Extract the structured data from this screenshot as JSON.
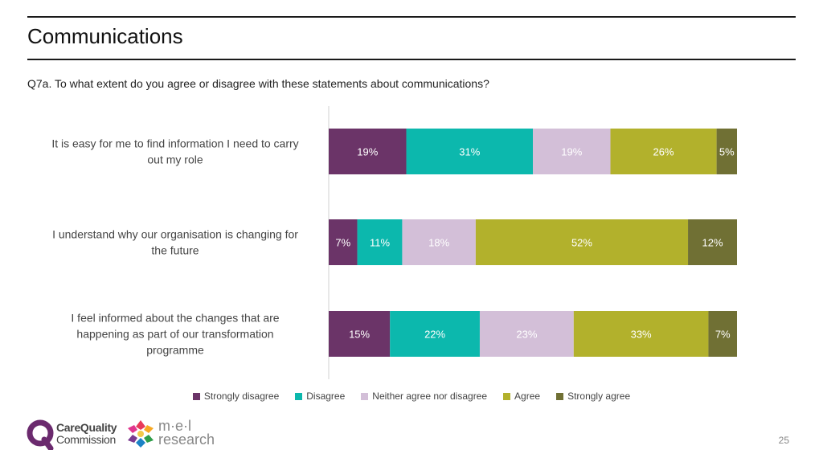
{
  "header": {
    "title": "Communications"
  },
  "question": "Q7a. To what extent do you agree or disagree with these statements about communications?",
  "chart_data": {
    "type": "bar",
    "orientation": "horizontal",
    "stacked": true,
    "percent_stacked": true,
    "categories": [
      [
        "It is easy for me to find information I need to carry",
        "out my role"
      ],
      [
        "I understand why our organisation is changing for",
        "the future"
      ],
      [
        "I feel informed about the changes that are",
        "happening as part of our transformation",
        "programme"
      ]
    ],
    "series": [
      {
        "name": "Strongly disagree",
        "color": "#6b3468",
        "values": [
          19,
          7,
          15
        ]
      },
      {
        "name": "Disagree",
        "color": "#0cb8ad",
        "values": [
          31,
          11,
          22
        ]
      },
      {
        "name": "Neither agree nor disagree",
        "color": "#d3bfd8",
        "values": [
          19,
          18,
          23
        ]
      },
      {
        "name": "Agree",
        "color": "#b2b12c",
        "values": [
          26,
          52,
          33
        ]
      },
      {
        "name": "Strongly agree",
        "color": "#707034",
        "values": [
          5,
          12,
          7
        ]
      }
    ],
    "value_suffix": "%",
    "legend_position": "bottom"
  },
  "footer": {
    "page_number": "25",
    "logo_cqc": [
      "CareQuality",
      "Commission"
    ],
    "logo_mel": [
      "m·e·l",
      "research"
    ]
  }
}
